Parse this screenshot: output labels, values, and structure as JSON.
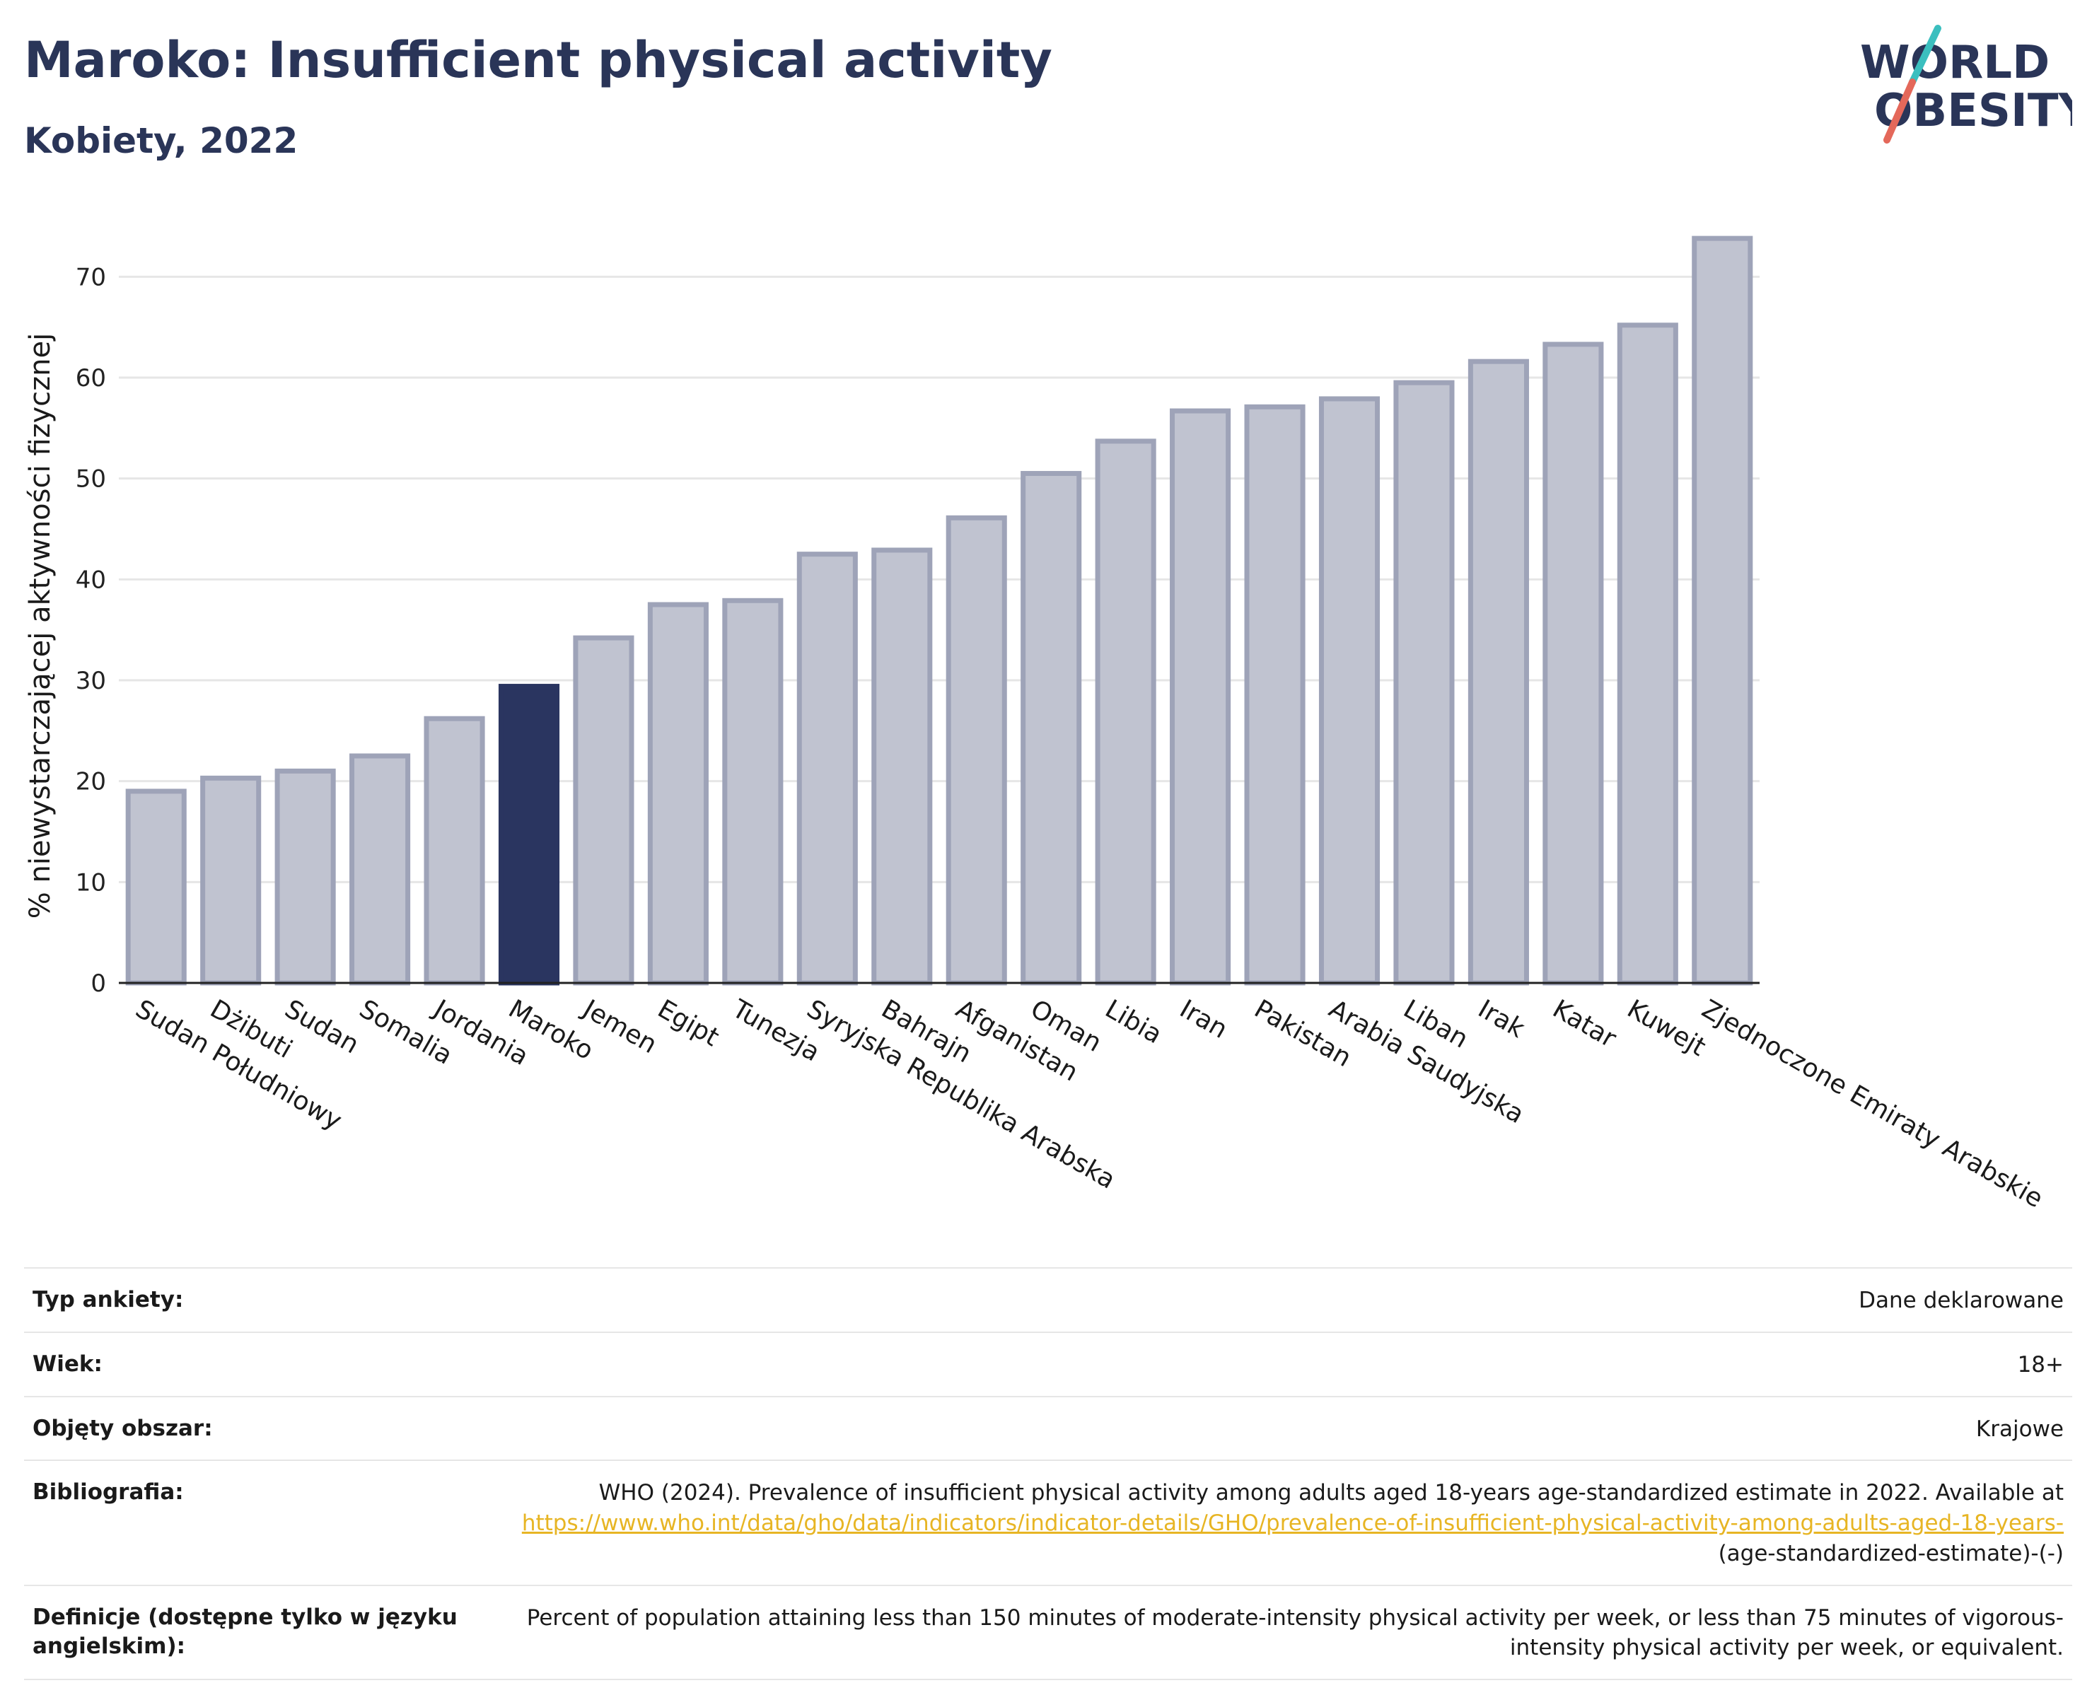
{
  "header": {
    "title": "Maroko: Insufficient physical activity",
    "subtitle": "Kobiety, 2022"
  },
  "logo": {
    "line1": "WORLD",
    "line2": "OBESITY",
    "colors": {
      "text": "#2a3558",
      "slash_teal": "#3bbfbf",
      "slash_coral": "#e4685a"
    }
  },
  "colors": {
    "bar_default": "#c0c3d0",
    "bar_default_stroke": "#9ea3b8",
    "bar_highlight": "#2a3560",
    "grid": "#e6e6e6",
    "axis": "#222222"
  },
  "chart_data": {
    "type": "bar",
    "title": "",
    "xlabel": "",
    "ylabel": "% niewystarczającej aktywności fizycznej",
    "ylim": [
      0,
      75
    ],
    "yticks": [
      0,
      10,
      20,
      30,
      40,
      50,
      60,
      70
    ],
    "grid": true,
    "highlight": "Maroko",
    "categories": [
      "Sudan Południowy",
      "Dżibuti",
      "Sudan",
      "Somalia",
      "Jordania",
      "Maroko",
      "Jemen",
      "Egipt",
      "Tunezja",
      "Syryjska Republika Arabska",
      "Bahrajn",
      "Afganistan",
      "Oman",
      "Libia",
      "Iran",
      "Pakistan",
      "Arabia Saudyjska",
      "Liban",
      "Irak",
      "Katar",
      "Kuwejt",
      "Zjednoczone Emiraty Arabskie"
    ],
    "values": [
      19.0,
      20.3,
      21.0,
      22.5,
      26.2,
      29.4,
      34.2,
      37.5,
      37.9,
      42.5,
      42.9,
      46.1,
      50.5,
      53.7,
      56.7,
      57.1,
      57.9,
      59.5,
      61.6,
      63.3,
      65.2,
      73.8
    ]
  },
  "meta": [
    {
      "label": "Typ ankiety:",
      "value": "Dane deklarowane"
    },
    {
      "label": "Wiek:",
      "value": "18+"
    },
    {
      "label": "Objęty obszar:",
      "value": "Krajowe"
    },
    {
      "label": "Bibliografia:",
      "value_prefix": "WHO (2024). Prevalence of insufficient physical activity among adults aged 18-years age-standardized estimate in 2022. Available at",
      "link": "https://www.who.int/data/gho/data/indicators/indicator-details/GHO/prevalence-of-insufficient-physical-activity-among-adults-aged-18-years-",
      "value_suffix": "(age-standardized-estimate)-(-)"
    },
    {
      "label": "Definicje (dostępne tylko w języku angielskim):",
      "value": "Percent of population attaining less than 150 minutes of moderate-intensity physical activity per week, or less than 75 minutes of vigorous-intensity physical activity per week, or equivalent."
    }
  ]
}
